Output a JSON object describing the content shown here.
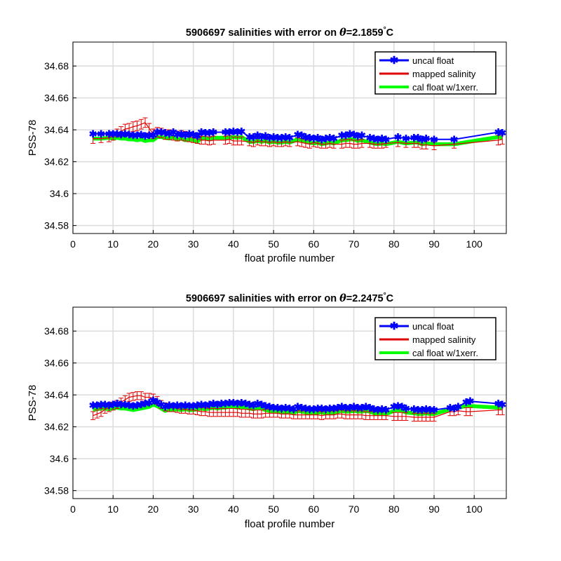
{
  "chart_data": [
    {
      "type": "line",
      "title_prefix": "5906697 salinities with error on ",
      "title_theta": "θ",
      "title_value": "=2.1859",
      "title_degree": "°",
      "title_unit": "C",
      "xlabel": "float profile number",
      "ylabel": "PSS-78",
      "xlim": [
        0,
        108
      ],
      "ylim": [
        34.575,
        34.695
      ],
      "xticks": [
        "0",
        "10",
        "20",
        "30",
        "40",
        "50",
        "60",
        "70",
        "80",
        "90",
        "100"
      ],
      "yticks": [
        "34.58",
        "34.6",
        "34.62",
        "34.64",
        "34.66",
        "34.68"
      ],
      "grid": true,
      "legend_position": "top-right",
      "legend": [
        "uncal float",
        "mapped salinity",
        "cal float w/1xerr."
      ],
      "colors": {
        "uncal": "#0000ff",
        "mapped": "#e00000",
        "cal": "#00ff00"
      },
      "x": [
        5,
        7,
        9,
        10,
        11,
        12,
        13,
        14,
        15,
        16,
        17,
        18,
        19,
        20,
        21,
        22,
        23,
        24,
        25,
        26,
        27,
        28,
        29,
        30,
        31,
        32,
        33,
        34,
        35,
        38,
        39,
        40,
        41,
        42,
        44,
        45,
        46,
        47,
        48,
        49,
        50,
        51,
        52,
        53,
        54,
        56,
        57,
        58,
        59,
        60,
        61,
        62,
        63,
        64,
        65,
        67,
        68,
        69,
        70,
        71,
        72,
        74,
        75,
        76,
        77,
        78,
        81,
        83,
        85,
        86,
        87,
        88,
        90,
        95,
        106,
        107
      ],
      "uncal_float": [
        34.6375,
        34.6375,
        34.6375,
        34.6375,
        34.6375,
        34.637,
        34.6375,
        34.637,
        34.6365,
        34.6365,
        34.637,
        34.636,
        34.6365,
        34.6365,
        34.6385,
        34.6385,
        34.638,
        34.6375,
        34.6385,
        34.637,
        34.6375,
        34.6365,
        34.6375,
        34.637,
        34.636,
        34.6385,
        34.638,
        34.638,
        34.6385,
        34.6385,
        34.6385,
        34.639,
        34.6385,
        34.639,
        34.6355,
        34.6355,
        34.6365,
        34.6355,
        34.636,
        34.635,
        34.6355,
        34.635,
        34.635,
        34.6355,
        34.635,
        34.637,
        34.6365,
        34.6355,
        34.635,
        34.6345,
        34.635,
        34.634,
        34.6345,
        34.635,
        34.6345,
        34.6365,
        34.6365,
        34.6375,
        34.637,
        34.636,
        34.6365,
        34.635,
        34.6345,
        34.634,
        34.6345,
        34.634,
        34.6355,
        34.6345,
        34.635,
        34.635,
        34.634,
        34.6345,
        34.634,
        34.634,
        34.6385,
        34.638
      ],
      "mapped_salinity": [
        34.6345,
        34.6345,
        34.635,
        34.636,
        34.638,
        34.639,
        34.6405,
        34.641,
        34.642,
        34.6425,
        34.6435,
        34.6445,
        34.641,
        34.6375,
        34.6385,
        34.638,
        34.637,
        34.637,
        34.6365,
        34.636,
        34.6365,
        34.636,
        34.6355,
        34.635,
        34.6345,
        34.6335,
        34.6335,
        34.633,
        34.6335,
        34.6335,
        34.634,
        34.633,
        34.633,
        34.633,
        34.6325,
        34.632,
        34.633,
        34.6325,
        34.6325,
        34.632,
        34.6325,
        34.632,
        34.632,
        34.6325,
        34.632,
        34.6325,
        34.632,
        34.6315,
        34.631,
        34.632,
        34.6315,
        34.631,
        34.631,
        34.6315,
        34.631,
        34.631,
        34.6315,
        34.6315,
        34.631,
        34.631,
        34.6315,
        34.6315,
        34.631,
        34.631,
        34.631,
        34.6315,
        34.632,
        34.6315,
        34.6315,
        34.6315,
        34.6305,
        34.6305,
        34.63,
        34.631,
        34.6335,
        34.634
      ],
      "mapped_error": [
        0.003,
        0.0025,
        0.0025,
        0.0025,
        0.0025,
        0.003,
        0.003,
        0.003,
        0.003,
        0.003,
        0.003,
        0.003,
        0.003,
        0.003,
        0.003,
        0.003,
        0.003,
        0.003,
        0.003,
        0.003,
        0.003,
        0.003,
        0.003,
        0.003,
        0.003,
        0.0025,
        0.0025,
        0.0025,
        0.0025,
        0.0025,
        0.0025,
        0.0025,
        0.0025,
        0.0025,
        0.0025,
        0.0025,
        0.0025,
        0.0025,
        0.0025,
        0.0025,
        0.0025,
        0.0025,
        0.0025,
        0.0025,
        0.0025,
        0.0025,
        0.0025,
        0.0025,
        0.0025,
        0.0025,
        0.0025,
        0.0025,
        0.0025,
        0.0025,
        0.0025,
        0.0025,
        0.0025,
        0.0025,
        0.0025,
        0.0025,
        0.0025,
        0.0025,
        0.0025,
        0.0025,
        0.0025,
        0.0025,
        0.0025,
        0.0025,
        0.0025,
        0.0025,
        0.0025,
        0.0025,
        0.0025,
        0.0025,
        0.003,
        0.003
      ],
      "cal_float": [
        34.6345,
        34.6345,
        34.635,
        34.6345,
        34.635,
        34.6345,
        34.6345,
        34.634,
        34.634,
        34.6335,
        34.634,
        34.633,
        34.6335,
        34.6335,
        34.6355,
        34.6355,
        34.635,
        34.6345,
        34.6355,
        34.634,
        34.6345,
        34.6335,
        34.634,
        34.6335,
        34.6325,
        34.635,
        34.6345,
        34.6345,
        34.635,
        34.635,
        34.635,
        34.6355,
        34.635,
        34.6355,
        34.6325,
        34.6325,
        34.633,
        34.6325,
        34.633,
        34.632,
        34.6325,
        34.632,
        34.632,
        34.6325,
        34.632,
        34.634,
        34.6335,
        34.6325,
        34.632,
        34.6315,
        34.632,
        34.631,
        34.6315,
        34.632,
        34.6315,
        34.6335,
        34.6335,
        34.634,
        34.634,
        34.633,
        34.6335,
        34.632,
        34.6315,
        34.631,
        34.6315,
        34.631,
        34.6325,
        34.6315,
        34.632,
        34.632,
        34.631,
        34.6315,
        34.631,
        34.631,
        34.6355,
        34.635
      ]
    },
    {
      "type": "line",
      "title_prefix": "5906697 salinities with error on ",
      "title_theta": "θ",
      "title_value": "=2.2475",
      "title_degree": "°",
      "title_unit": "C",
      "xlabel": "float profile number",
      "ylabel": "PSS-78",
      "xlim": [
        0,
        108
      ],
      "ylim": [
        34.575,
        34.695
      ],
      "xticks": [
        "0",
        "10",
        "20",
        "30",
        "40",
        "50",
        "60",
        "70",
        "80",
        "90",
        "100"
      ],
      "yticks": [
        "34.58",
        "34.6",
        "34.62",
        "34.64",
        "34.66",
        "34.68"
      ],
      "grid": true,
      "legend_position": "top-right",
      "legend": [
        "uncal float",
        "mapped salinity",
        "cal float w/1xerr."
      ],
      "colors": {
        "uncal": "#0000ff",
        "mapped": "#e00000",
        "cal": "#00ff00"
      },
      "x": [
        5,
        6,
        7,
        8,
        9,
        10,
        11,
        12,
        13,
        14,
        15,
        16,
        17,
        18,
        19,
        20,
        21,
        22,
        23,
        24,
        25,
        26,
        27,
        28,
        29,
        30,
        31,
        32,
        33,
        34,
        35,
        36,
        37,
        38,
        39,
        40,
        41,
        42,
        43,
        44,
        45,
        46,
        47,
        48,
        49,
        50,
        51,
        52,
        53,
        54,
        55,
        56,
        57,
        58,
        59,
        60,
        61,
        62,
        63,
        64,
        65,
        66,
        67,
        68,
        69,
        70,
        71,
        72,
        73,
        74,
        75,
        76,
        77,
        78,
        80,
        81,
        82,
        83,
        85,
        86,
        87,
        88,
        89,
        90,
        94,
        95,
        96,
        98,
        99,
        106,
        107
      ],
      "uncal_float": [
        34.6335,
        34.6335,
        34.634,
        34.634,
        34.6335,
        34.634,
        34.6345,
        34.634,
        34.634,
        34.6335,
        34.633,
        34.6335,
        34.634,
        34.6345,
        34.635,
        34.6365,
        34.6355,
        34.634,
        34.6325,
        34.6335,
        34.633,
        34.6335,
        34.633,
        34.6335,
        34.633,
        34.633,
        34.6335,
        34.634,
        34.6335,
        34.634,
        34.6345,
        34.634,
        34.6345,
        34.6345,
        34.635,
        34.635,
        34.6345,
        34.635,
        34.6345,
        34.634,
        34.6335,
        34.6345,
        34.634,
        34.633,
        34.6325,
        34.632,
        34.632,
        34.6315,
        34.632,
        34.6315,
        34.631,
        34.6325,
        34.632,
        34.6315,
        34.631,
        34.631,
        34.6315,
        34.6315,
        34.631,
        34.6315,
        34.6315,
        34.632,
        34.6325,
        34.632,
        34.632,
        34.6325,
        34.632,
        34.632,
        34.6325,
        34.632,
        34.631,
        34.6305,
        34.631,
        34.6305,
        34.6325,
        34.633,
        34.6325,
        34.6315,
        34.631,
        34.6305,
        34.6305,
        34.631,
        34.6305,
        34.6305,
        34.632,
        34.6315,
        34.6325,
        34.6355,
        34.636,
        34.6345,
        34.634
      ],
      "mapped_salinity": [
        34.627,
        34.628,
        34.629,
        34.631,
        34.632,
        34.633,
        34.634,
        34.6355,
        34.637,
        34.6385,
        34.639,
        34.6395,
        34.6395,
        34.6385,
        34.6385,
        34.638,
        34.6365,
        34.634,
        34.6325,
        34.632,
        34.632,
        34.6315,
        34.631,
        34.631,
        34.6305,
        34.6305,
        34.63,
        34.6295,
        34.6295,
        34.629,
        34.629,
        34.629,
        34.629,
        34.629,
        34.629,
        34.629,
        34.629,
        34.6285,
        34.6285,
        34.6285,
        34.628,
        34.628,
        34.628,
        34.6285,
        34.6285,
        34.6285,
        34.6285,
        34.628,
        34.628,
        34.628,
        34.6275,
        34.6275,
        34.6275,
        34.6275,
        34.6275,
        34.6275,
        34.6275,
        34.627,
        34.6275,
        34.6275,
        34.6275,
        34.628,
        34.628,
        34.6275,
        34.6275,
        34.6275,
        34.6275,
        34.6275,
        34.627,
        34.627,
        34.627,
        34.627,
        34.627,
        34.627,
        34.6265,
        34.6265,
        34.6265,
        34.6265,
        34.626,
        34.626,
        34.626,
        34.626,
        34.626,
        34.626,
        34.6295,
        34.6295,
        34.63,
        34.6295,
        34.6295,
        34.6305,
        34.6305
      ],
      "mapped_error": [
        0.0025,
        0.0025,
        0.0025,
        0.0025,
        0.0025,
        0.0025,
        0.0025,
        0.0025,
        0.0025,
        0.0025,
        0.0025,
        0.0025,
        0.0025,
        0.0025,
        0.0025,
        0.0025,
        0.0025,
        0.0025,
        0.0025,
        0.0025,
        0.0025,
        0.0025,
        0.0025,
        0.0025,
        0.0025,
        0.0025,
        0.0025,
        0.0025,
        0.0025,
        0.0025,
        0.0025,
        0.0025,
        0.0025,
        0.0025,
        0.0025,
        0.0025,
        0.0025,
        0.0025,
        0.0025,
        0.0025,
        0.0025,
        0.0025,
        0.0025,
        0.0025,
        0.0025,
        0.0025,
        0.0025,
        0.0025,
        0.0025,
        0.0025,
        0.0025,
        0.0025,
        0.0025,
        0.0025,
        0.0025,
        0.0025,
        0.0025,
        0.0025,
        0.0025,
        0.0025,
        0.0025,
        0.0025,
        0.0025,
        0.0025,
        0.0025,
        0.0025,
        0.0025,
        0.0025,
        0.0025,
        0.0025,
        0.0025,
        0.0025,
        0.0025,
        0.0025,
        0.0025,
        0.0025,
        0.0025,
        0.0025,
        0.0025,
        0.0025,
        0.0025,
        0.0025,
        0.0025,
        0.0025,
        0.0025,
        0.0025,
        0.0025,
        0.0025,
        0.0025,
        0.003,
        0.003
      ],
      "cal_float": [
        34.631,
        34.631,
        34.6315,
        34.6315,
        34.631,
        34.6315,
        34.632,
        34.6315,
        34.6315,
        34.631,
        34.6305,
        34.631,
        34.6315,
        34.632,
        34.6325,
        34.634,
        34.633,
        34.6315,
        34.63,
        34.631,
        34.6305,
        34.631,
        34.6305,
        34.631,
        34.6305,
        34.6305,
        34.631,
        34.6315,
        34.631,
        34.6315,
        34.632,
        34.6315,
        34.632,
        34.632,
        34.6325,
        34.6325,
        34.632,
        34.6325,
        34.632,
        34.6315,
        34.631,
        34.632,
        34.6315,
        34.6305,
        34.63,
        34.6295,
        34.6295,
        34.629,
        34.6295,
        34.629,
        34.6285,
        34.63,
        34.6295,
        34.629,
        34.6285,
        34.6285,
        34.629,
        34.629,
        34.6285,
        34.629,
        34.629,
        34.6295,
        34.63,
        34.6295,
        34.6295,
        34.63,
        34.6295,
        34.6295,
        34.63,
        34.6295,
        34.6285,
        34.628,
        34.6285,
        34.628,
        34.63,
        34.6305,
        34.63,
        34.629,
        34.6285,
        34.628,
        34.628,
        34.6285,
        34.628,
        34.628,
        34.631,
        34.6315,
        34.632,
        34.633,
        34.633,
        34.632,
        34.632
      ]
    }
  ]
}
